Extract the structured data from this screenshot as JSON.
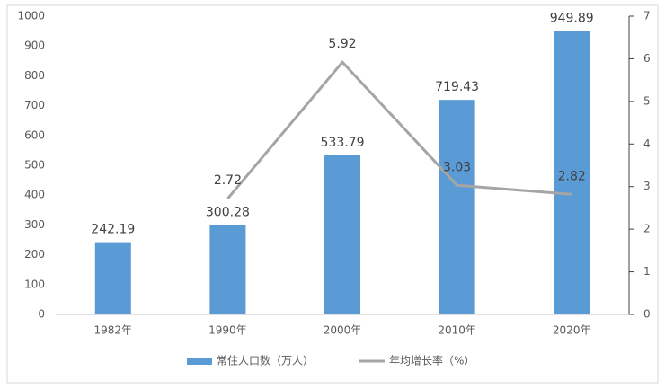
{
  "chart_data": {
    "type": "bar",
    "categories": [
      "1982年",
      "1990年",
      "2000年",
      "2010年",
      "2020年"
    ],
    "series": [
      {
        "name": "常住人口数（万人）",
        "type": "bar",
        "color": "#5b9bd5",
        "values": [
          242.19,
          300.28,
          533.79,
          719.43,
          949.89
        ]
      },
      {
        "name": "年均增长率（%）",
        "type": "line",
        "axis": "y2",
        "color": "#a5a5a5",
        "values": [
          null,
          2.72,
          5.92,
          3.03,
          2.82
        ]
      }
    ],
    "ylim": [
      0,
      1000
    ],
    "yticks": [
      0,
      100,
      200,
      300,
      400,
      500,
      600,
      700,
      800,
      900,
      1000
    ],
    "y2lim": [
      0,
      7
    ],
    "y2ticks": [
      0,
      1,
      2,
      3,
      4,
      5,
      6,
      7
    ],
    "grid": false,
    "legend": "bottom"
  }
}
